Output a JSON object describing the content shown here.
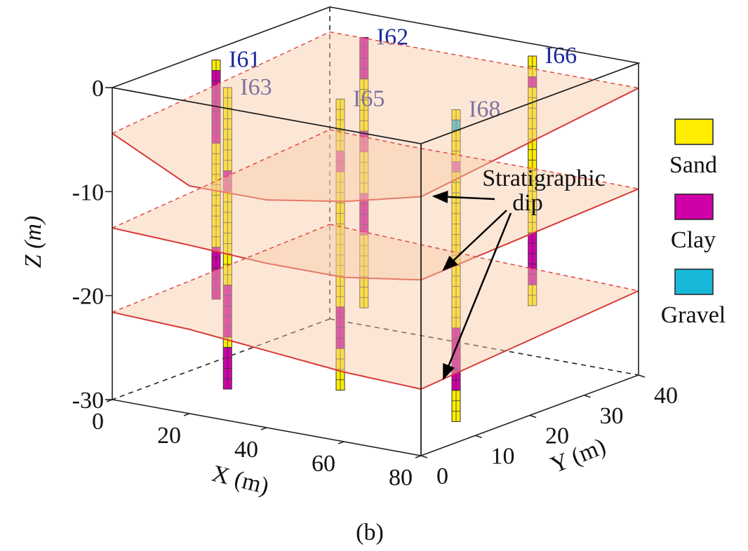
{
  "chart_data": {
    "type": "borehole3d",
    "caption": "(b)",
    "xlabel": "X (m)",
    "ylabel": "Y (m)",
    "zlabel": "Z (m)",
    "xlim": [
      0,
      80
    ],
    "ylim": [
      0,
      40
    ],
    "zlim": [
      -30,
      0
    ],
    "xticks": [
      0,
      20,
      40,
      60,
      80
    ],
    "yticks": [
      0,
      10,
      20,
      30,
      40
    ],
    "zticks": [
      0,
      -10,
      -20,
      -30
    ],
    "annotation": [
      "Stratigraphic",
      "dip"
    ],
    "legend": [
      {
        "name": "Sand",
        "color": "#ffee00"
      },
      {
        "name": "Clay",
        "color": "#d000a8"
      },
      {
        "name": "Gravel",
        "color": "#18b8d8"
      }
    ],
    "surface_x": [
      0,
      20,
      40,
      60,
      80
    ],
    "surfaces": [
      {
        "front": [
          -4.4,
          -8.1,
          -8.1,
          -6.9,
          -5.1
        ],
        "back": [
          -2.4,
          -2.4,
          -2.4,
          -2.4,
          -2.4
        ]
      },
      {
        "front": [
          -13.5,
          -13.8,
          -14.2,
          -14.2,
          -13.1
        ],
        "back": [
          -11.8,
          -12,
          -12,
          -12,
          -12.1
        ]
      },
      {
        "front": [
          -21.6,
          -21.9,
          -22.6,
          -23.3,
          -23.6
        ],
        "back": [
          -20.9,
          -21.2,
          -21.5,
          -21.7,
          -21.9
        ]
      }
    ],
    "boreholes": [
      {
        "name": "I62",
        "x": 30,
        "y": 25,
        "layers": [
          {
            "soil": "Clay",
            "top": 2,
            "bottom": -2
          },
          {
            "soil": "Sand",
            "top": -2,
            "bottom": -7
          },
          {
            "soil": "Clay",
            "top": -7,
            "bottom": -9
          },
          {
            "soil": "Sand",
            "top": -9,
            "bottom": -13
          },
          {
            "soil": "Clay",
            "top": -13,
            "bottom": -17
          },
          {
            "soil": "Sand",
            "top": -17,
            "bottom": -24
          }
        ]
      },
      {
        "name": "I66",
        "x": 68,
        "y": 29,
        "layers": [
          {
            "soil": "Sand",
            "top": 2,
            "bottom": 0
          },
          {
            "soil": "Clay",
            "top": 0,
            "bottom": -1
          },
          {
            "soil": "Sand",
            "top": -1,
            "bottom": -15
          },
          {
            "soil": "Clay",
            "top": -15,
            "bottom": -20
          },
          {
            "soil": "Sand",
            "top": -20,
            "bottom": -22
          }
        ]
      },
      {
        "name": "I61",
        "x": 10,
        "y": 12,
        "layers": [
          {
            "soil": "Sand",
            "top": 1,
            "bottom": 0
          },
          {
            "soil": "Clay",
            "top": 0,
            "bottom": -7
          },
          {
            "soil": "Sand",
            "top": -7,
            "bottom": -17
          },
          {
            "soil": "Clay",
            "top": -17,
            "bottom": -22
          }
        ]
      },
      {
        "name": "I65",
        "x": 45,
        "y": 10,
        "layers": [
          {
            "soil": "Sand",
            "top": 0,
            "bottom": -5
          },
          {
            "soil": "Clay",
            "top": -5,
            "bottom": -7
          },
          {
            "soil": "Sand",
            "top": -7,
            "bottom": -20
          },
          {
            "soil": "Clay",
            "top": -20,
            "bottom": -24
          },
          {
            "soil": "Sand",
            "top": -24,
            "bottom": -28
          }
        ]
      },
      {
        "name": "I68",
        "x": 75,
        "y": 10,
        "layers": [
          {
            "soil": "Sand",
            "top": 1,
            "bottom": 0
          },
          {
            "soil": "Gravel",
            "top": 0,
            "bottom": -1
          },
          {
            "soil": "Sand",
            "top": -1,
            "bottom": -4
          },
          {
            "soil": "Clay",
            "top": -4,
            "bottom": -5
          },
          {
            "soil": "Sand",
            "top": -5,
            "bottom": -20
          },
          {
            "soil": "Clay",
            "top": -20,
            "bottom": -26
          },
          {
            "soil": "Sand",
            "top": -26,
            "bottom": -29
          }
        ]
      },
      {
        "name": "I63",
        "x": 20,
        "y": 7,
        "layers": [
          {
            "soil": "Sand",
            "top": 0,
            "bottom": -8
          },
          {
            "soil": "Clay",
            "top": -8,
            "bottom": -10
          },
          {
            "soil": "Sand",
            "top": -10,
            "bottom": -19
          },
          {
            "soil": "Clay",
            "top": -19,
            "bottom": -24
          },
          {
            "soil": "Sand",
            "top": -24,
            "bottom": -25
          },
          {
            "soil": "Clay",
            "top": -25,
            "bottom": -29
          }
        ]
      }
    ]
  }
}
